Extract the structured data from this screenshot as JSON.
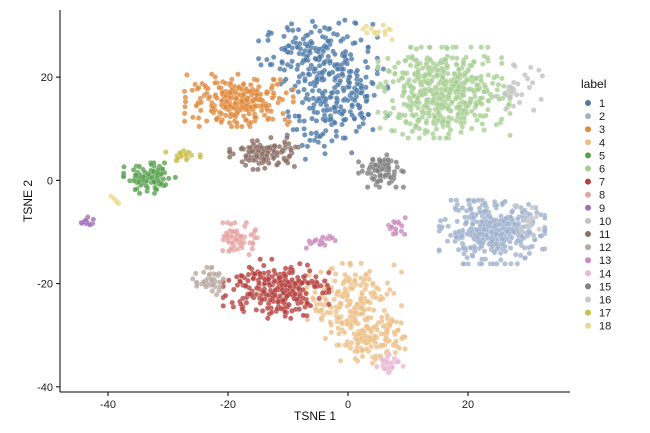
{
  "chart_data": {
    "type": "scatter",
    "xlabel": "TSNE 1",
    "ylabel": "TSNE 2",
    "xlim": [
      -48,
      37
    ],
    "ylim": [
      -41,
      33
    ],
    "x_ticks": [
      -40,
      -20,
      0,
      20
    ],
    "y_ticks": [
      -40,
      -20,
      0,
      20
    ],
    "x_tick_labels": [
      "-40",
      "-20",
      "0",
      "20"
    ],
    "y_tick_labels": [
      "-40",
      "-20",
      "0",
      "20"
    ],
    "grid": false,
    "legend": {
      "title": "label",
      "placement": "right"
    },
    "series": [
      {
        "name": "1",
        "color": "#4e79a7",
        "clusters": [
          {
            "cx": -5,
            "cy": 24,
            "sx": 4.5,
            "sy": 3.2,
            "n": 170
          },
          {
            "cx": -4,
            "cy": 14,
            "sx": 3.0,
            "sy": 4.5,
            "n": 110
          },
          {
            "cx": 0,
            "cy": 17,
            "sx": 3.0,
            "sy": 4.0,
            "n": 80
          }
        ]
      },
      {
        "name": "2",
        "color": "#a0b1cd",
        "clusters": [
          {
            "cx": 24,
            "cy": -10,
            "sx": 4.0,
            "sy": 2.8,
            "n": 360
          }
        ]
      },
      {
        "name": "3",
        "color": "#e08a3c",
        "clusters": [
          {
            "cx": -18,
            "cy": 15.5,
            "sx": 4.2,
            "sy": 2.3,
            "n": 240
          }
        ]
      },
      {
        "name": "4",
        "color": "#eebf86",
        "clusters": [
          {
            "cx": 1,
            "cy": -24,
            "sx": 3.6,
            "sy": 3.6,
            "n": 200
          },
          {
            "cx": 4,
            "cy": -31,
            "sx": 2.5,
            "sy": 2.0,
            "n": 120
          }
        ]
      },
      {
        "name": "5",
        "color": "#59a14f",
        "clusters": [
          {
            "cx": -33,
            "cy": 0.3,
            "sx": 2.0,
            "sy": 1.4,
            "n": 90
          }
        ]
      },
      {
        "name": "6",
        "color": "#a8cf93",
        "clusters": [
          {
            "cx": 16,
            "cy": 17,
            "sx": 5.0,
            "sy": 4.0,
            "n": 500
          }
        ]
      },
      {
        "name": "7",
        "color": "#b5413e",
        "clusters": [
          {
            "cx": -12,
            "cy": -21,
            "sx": 4.0,
            "sy": 2.6,
            "n": 240
          }
        ]
      },
      {
        "name": "8",
        "color": "#e6a3a1",
        "clusters": [
          {
            "cx": -18,
            "cy": -11.5,
            "sx": 1.3,
            "sy": 1.5,
            "n": 70
          }
        ]
      },
      {
        "name": "9",
        "color": "#a070b8",
        "clusters": [
          {
            "cx": -43.5,
            "cy": -8,
            "sx": 0.5,
            "sy": 0.4,
            "n": 14
          }
        ]
      },
      {
        "name": "10",
        "color": "#c2c2c2",
        "clusters": [
          {
            "cx": 28,
            "cy": 18,
            "sx": 2.0,
            "sy": 2.0,
            "n": 30
          }
        ]
      },
      {
        "name": "11",
        "color": "#8b6e64",
        "clusters": [
          {
            "cx": -14,
            "cy": 5.2,
            "sx": 2.6,
            "sy": 1.4,
            "n": 110
          }
        ]
      },
      {
        "name": "12",
        "color": "#b9a9a1",
        "clusters": [
          {
            "cx": -23,
            "cy": -19.5,
            "sx": 1.3,
            "sy": 1.2,
            "n": 45
          }
        ]
      },
      {
        "name": "13",
        "color": "#c98bbb",
        "clusters": [
          {
            "cx": -5,
            "cy": -12,
            "sx": 1.3,
            "sy": 0.7,
            "n": 18
          },
          {
            "cx": 8,
            "cy": -9,
            "sx": 0.8,
            "sy": 0.8,
            "n": 16
          }
        ]
      },
      {
        "name": "14",
        "color": "#e9b9d3",
        "clusters": [
          {
            "cx": 7,
            "cy": -35.5,
            "sx": 1.0,
            "sy": 0.8,
            "n": 30
          }
        ]
      },
      {
        "name": "15",
        "color": "#7f7f7f",
        "clusters": [
          {
            "cx": 5.5,
            "cy": 2,
            "sx": 1.7,
            "sy": 1.5,
            "n": 80
          }
        ]
      },
      {
        "name": "16",
        "color": "#c7c7c7",
        "clusters": [
          {
            "cx": 30,
            "cy": -8,
            "sx": 1.8,
            "sy": 1.4,
            "n": 12
          }
        ]
      },
      {
        "name": "17",
        "color": "#c9bd4e",
        "clusters": [
          {
            "cx": -27.5,
            "cy": 4.8,
            "sx": 1.3,
            "sy": 0.5,
            "n": 20
          }
        ]
      },
      {
        "name": "18",
        "color": "#ead98c",
        "clusters": [
          {
            "cx": -39,
            "cy": -4,
            "sx": 0.5,
            "sy": 0.5,
            "n": 5
          },
          {
            "cx": 5,
            "cy": 29,
            "sx": 1.5,
            "sy": 0.8,
            "n": 14
          }
        ]
      }
    ]
  }
}
